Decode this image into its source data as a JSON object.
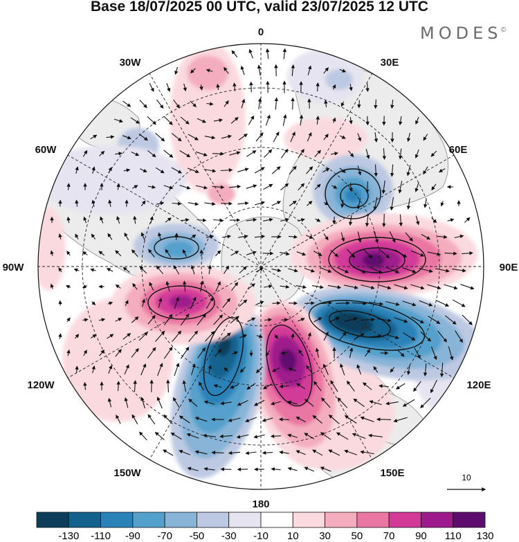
{
  "title": "Base 18/07/2025 00 UTC, valid 23/07/2025 12 UTC",
  "brand": "MODES",
  "brand_mark": "©",
  "longitude_labels": {
    "lon_0": "0",
    "lon_30e": "30E",
    "lon_60e": "60E",
    "lon_90e": "90E",
    "lon_120e": "120E",
    "lon_150e": "150E",
    "lon_180": "180",
    "lon_150w": "150W",
    "lon_120w": "120W",
    "lon_90w": "90W",
    "lon_60w": "60W",
    "lon_30w": "30W"
  },
  "reference_vector": {
    "label": "10"
  },
  "colorbar": {
    "tick_labels": [
      "-130",
      "-110",
      "-90",
      "-70",
      "-50",
      "-30",
      "-10",
      "10",
      "30",
      "50",
      "70",
      "90",
      "110",
      "130"
    ],
    "colors": [
      "#0c3e5a",
      "#13628e",
      "#2a82b8",
      "#54a0cc",
      "#88b4d8",
      "#bdc9e2",
      "#e6e4f0",
      "#ffffff",
      "#fbdadf",
      "#f4adbd",
      "#ea76a3",
      "#d33a98",
      "#9e1a8c",
      "#5e0b6e"
    ]
  },
  "map": {
    "projection": "north-polar-stereographic",
    "colors": {
      "land_outline": "#9a9a9a",
      "land_fill": "#e8e8e8",
      "grid": "#222222"
    }
  }
}
